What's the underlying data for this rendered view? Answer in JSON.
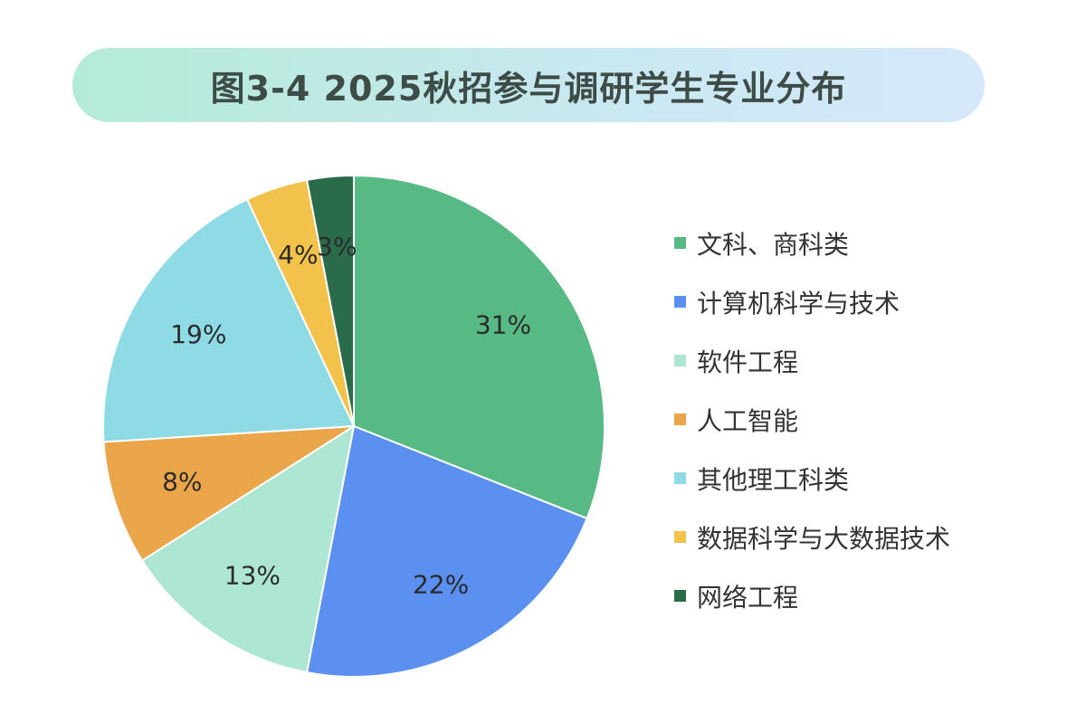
{
  "title": "图3-4 2025秋招参与调研学生专业分布",
  "chart_data": {
    "type": "pie",
    "title": "图3-4 2025秋招参与调研学生专业分布",
    "legend_position": "right",
    "slices": [
      {
        "label": "文科、商科类",
        "value": 31,
        "text": "31%",
        "color": "#57ba84"
      },
      {
        "label": "计算机科学与技术",
        "value": 22,
        "text": "22%",
        "color": "#5b8ff0"
      },
      {
        "label": "软件工程",
        "value": 13,
        "text": "13%",
        "color": "#aee6d4"
      },
      {
        "label": "人工智能",
        "value": 8,
        "text": "8%",
        "color": "#eba54b"
      },
      {
        "label": "其他理工科类",
        "value": 19,
        "text": "19%",
        "color": "#8edbe6"
      },
      {
        "label": "数据科学与大数据技术",
        "value": 4,
        "text": "4%",
        "color": "#f2c24b"
      },
      {
        "label": "网络工程",
        "value": 3,
        "text": "3%",
        "color": "#2a6b4b"
      }
    ]
  }
}
